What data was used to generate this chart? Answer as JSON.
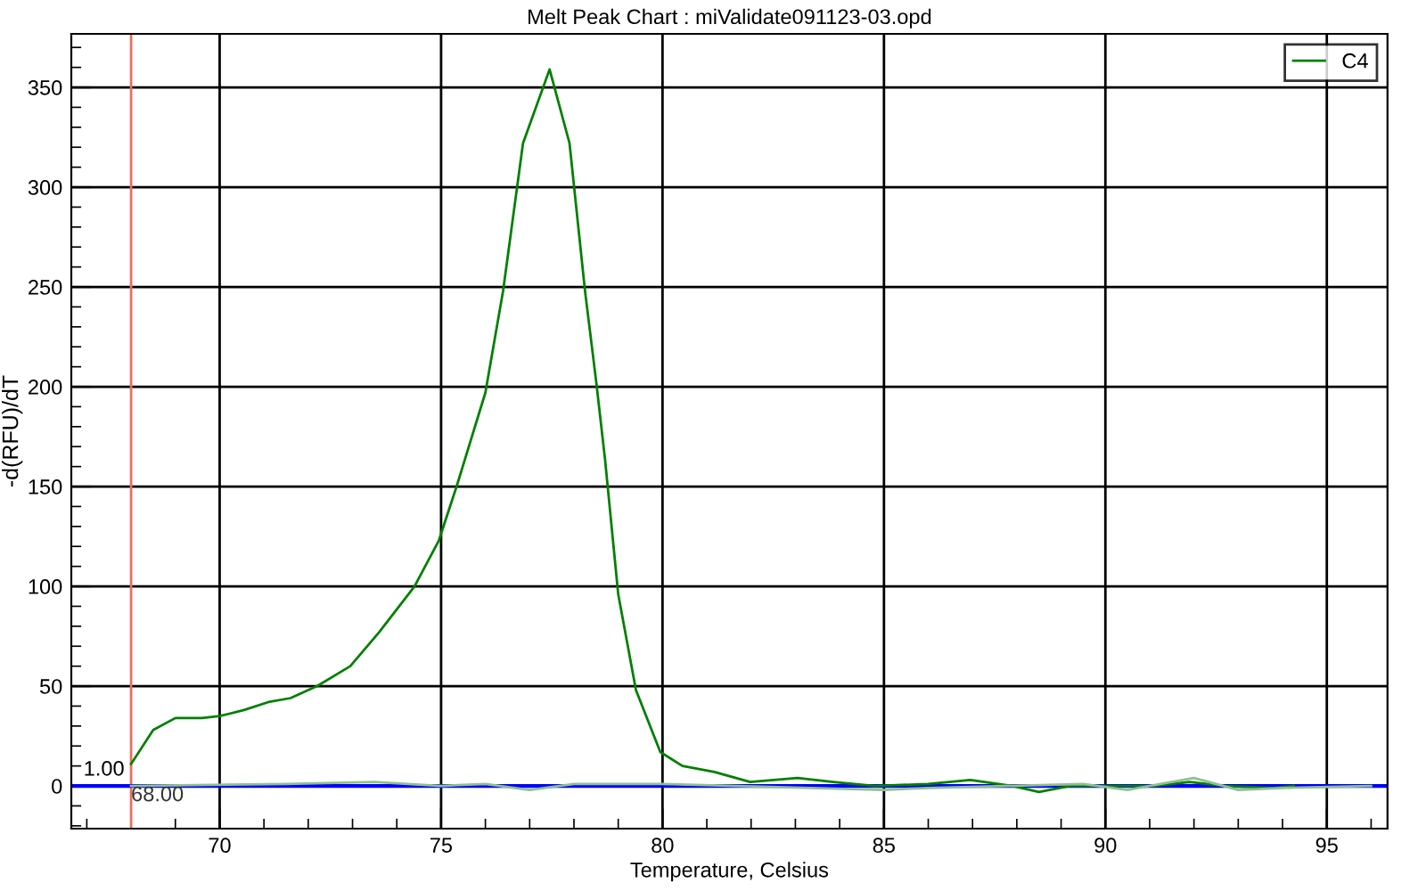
{
  "chart_data": {
    "type": "line",
    "title": "Melt Peak Chart : miValidate091123-03.opd",
    "xlabel": "Temperature, Celsius",
    "ylabel": "-d(RFU)/dT",
    "xlim": [
      66.65,
      96.37
    ],
    "xticks": [
      70,
      75,
      80,
      85,
      90,
      95
    ],
    "ylim": [
      -21.4,
      376.8
    ],
    "yticks": [
      0,
      50,
      100,
      150,
      200,
      250,
      300,
      350
    ],
    "grid": true,
    "legend": "top right",
    "line_style": "solid",
    "marker": "none",
    "series": [
      {
        "name": "C4",
        "color": "#008000",
        "x": [
          68.0,
          68.5,
          69.0,
          69.6,
          70.0,
          70.55,
          71.1,
          71.6,
          72.2,
          72.95,
          73.6,
          74.4,
          74.95,
          75.35,
          76.0,
          76.4,
          76.85,
          77.45,
          77.9,
          78.25,
          78.5,
          78.7,
          79.0,
          79.4,
          79.95,
          80.45,
          81.17,
          81.98,
          83.05,
          83.85,
          84.8,
          86.0,
          86.95,
          87.9,
          88.5,
          89.2,
          90.0,
          91.1,
          91.9,
          92.7,
          93.8,
          94.25
        ],
        "values": [
          11,
          28,
          34,
          34,
          35,
          38,
          42,
          44,
          50,
          60,
          77,
          100,
          123,
          150,
          197,
          248,
          322,
          359,
          322,
          248,
          203,
          164,
          96,
          48,
          17,
          10,
          7,
          2,
          4,
          2,
          0,
          1,
          3,
          0,
          -3,
          0,
          0,
          0,
          2,
          0,
          -1,
          0
        ]
      },
      {
        "color": "#90c090",
        "x": [
          68,
          71.5,
          73.5,
          75,
          76,
          77,
          78,
          80,
          85,
          86,
          89.5,
          90.5,
          92,
          93,
          94,
          96
        ],
        "values": [
          0,
          1,
          2,
          0,
          1,
          -2,
          1,
          1,
          -2,
          -1,
          1,
          -2,
          4,
          -2,
          -1,
          0
        ]
      }
    ],
    "ref_lines": [
      {
        "axis": "x",
        "value": 68,
        "label": "68.00",
        "color": "#e8705f"
      },
      {
        "axis": "y",
        "value": 0,
        "color": "#0000ff"
      }
    ],
    "annotations": [
      {
        "text": "1.00",
        "x": 68,
        "y": 1
      }
    ]
  }
}
